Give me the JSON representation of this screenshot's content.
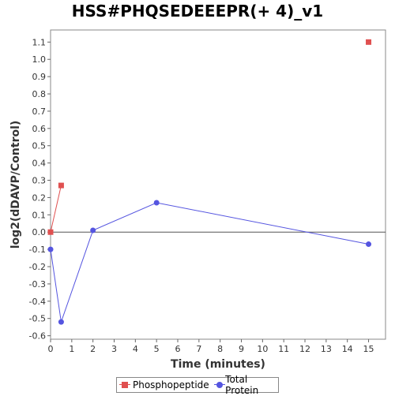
{
  "chart_data": {
    "type": "line",
    "title": "HSS#PHQSEDEEEPR(+ 4)_v1",
    "xlabel": "Time (minutes)",
    "ylabel": "log2(dDAVP/Control)",
    "xlim": [
      0,
      15.8
    ],
    "ylim": [
      -0.62,
      1.17
    ],
    "x_ticks": [
      0,
      1,
      2,
      3,
      4,
      5,
      6,
      7,
      8,
      9,
      10,
      11,
      12,
      13,
      14,
      15
    ],
    "y_ticks": [
      -0.6,
      -0.5,
      -0.4,
      -0.3,
      -0.2,
      -0.1,
      0.0,
      0.1,
      0.2,
      0.3,
      0.4,
      0.5,
      0.6,
      0.7,
      0.8,
      0.9,
      1.0,
      1.1
    ],
    "y_tick_labels": [
      "-0.6",
      "-0.5",
      "-0.4",
      "-0.3",
      "-0.2",
      "-0.1",
      "0.0",
      "0.1",
      "0.2",
      "0.3",
      "0.4",
      "0.5",
      "0.6",
      "0.7",
      "0.8",
      "0.9",
      "1.0",
      "1.1"
    ],
    "zero_line": true,
    "grid": false,
    "legend_position": "bottom-center",
    "series": [
      {
        "name": "Phosphopeptide",
        "color": "#e05050",
        "marker": "square",
        "segments": [
          [
            [
              0,
              0.0
            ],
            [
              0.5,
              0.27
            ]
          ],
          [
            [
              15,
              1.1
            ]
          ]
        ]
      },
      {
        "name": "Total Protein",
        "color": "#5555e0",
        "marker": "circle",
        "segments": [
          [
            [
              0,
              -0.1
            ],
            [
              0.5,
              -0.52
            ],
            [
              2,
              0.01
            ],
            [
              5,
              0.17
            ],
            [
              15,
              -0.07
            ]
          ]
        ]
      }
    ]
  }
}
